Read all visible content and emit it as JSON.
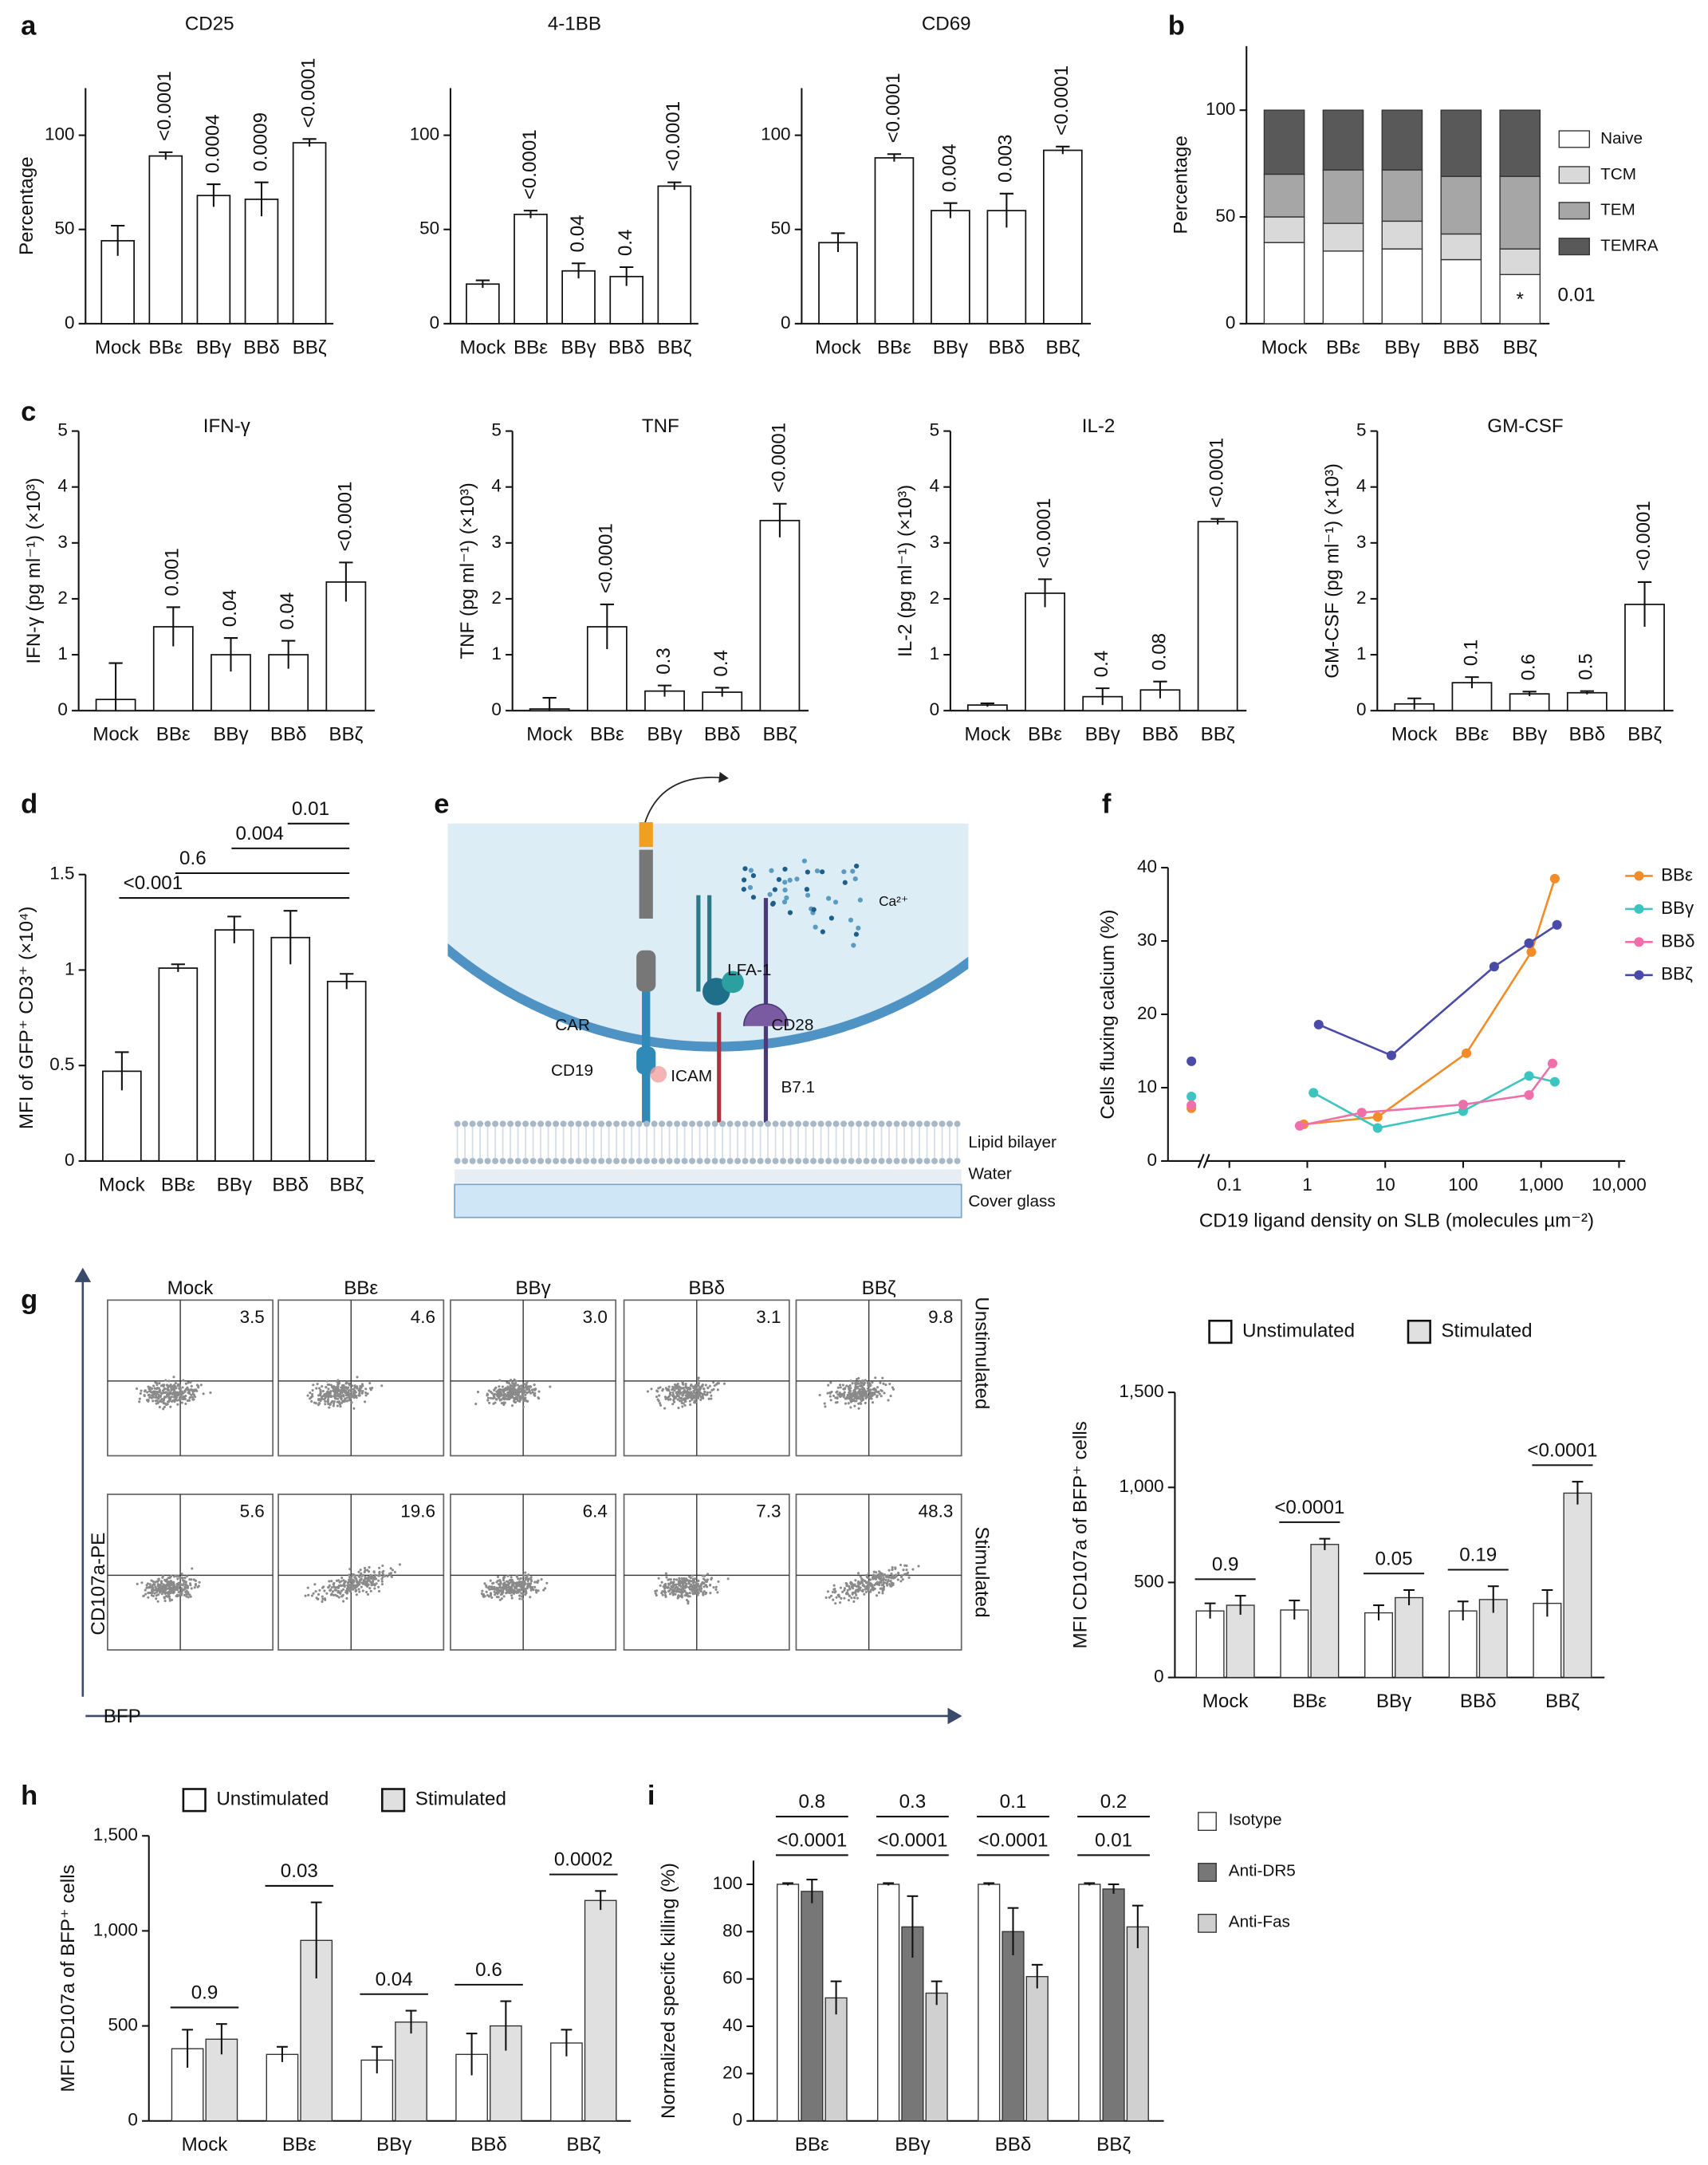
{
  "panel_labels": [
    "a",
    "b",
    "c",
    "d",
    "e",
    "f",
    "g",
    "h",
    "i"
  ],
  "chart_data": [
    {
      "type": "bar",
      "title": "CD25",
      "ylabel": "Percentage",
      "categories": [
        "Mock",
        "BBε",
        "BBγ",
        "BBδ",
        "BBζ"
      ],
      "values": [
        44,
        89,
        68,
        66,
        96
      ],
      "errors": [
        8,
        2,
        6,
        9,
        2
      ],
      "pvalues": [
        null,
        "<0.0001",
        "0.0004",
        "0.0009",
        "<0.0001"
      ],
      "ylim": [
        0,
        125
      ],
      "yticks": [
        0,
        50,
        100
      ]
    },
    {
      "type": "bar",
      "title": "4-1BB",
      "categories": [
        "Mock",
        "BBε",
        "BBγ",
        "BBδ",
        "BBζ"
      ],
      "values": [
        21,
        58,
        28,
        25,
        73
      ],
      "errors": [
        2,
        2,
        4,
        5,
        2
      ],
      "pvalues": [
        null,
        "<0.0001",
        "0.04",
        "0.4",
        "<0.0001"
      ],
      "ylim": [
        0,
        125
      ],
      "yticks": [
        0,
        50,
        100
      ]
    },
    {
      "type": "bar",
      "title": "CD69",
      "categories": [
        "Mock",
        "BBε",
        "BBγ",
        "BBδ",
        "BBζ"
      ],
      "values": [
        43,
        88,
        60,
        60,
        92
      ],
      "errors": [
        5,
        2,
        4,
        9,
        2
      ],
      "pvalues": [
        null,
        "<0.0001",
        "0.004",
        "0.003",
        "<0.0001"
      ],
      "ylim": [
        0,
        125
      ],
      "yticks": [
        0,
        50,
        100
      ]
    },
    {
      "type": "stacked_bar",
      "ylabel": "Percentage",
      "categories": [
        "Mock",
        "BBε",
        "BBγ",
        "BBδ",
        "BBζ"
      ],
      "series": [
        {
          "name": "Naive",
          "color": "#ffffff",
          "values": [
            38,
            34,
            35,
            30,
            23
          ]
        },
        {
          "name": "TCM",
          "color": "#d9d9d9",
          "values": [
            12,
            13,
            13,
            12,
            12
          ]
        },
        {
          "name": "TEM",
          "color": "#a6a6a6",
          "values": [
            20,
            25,
            24,
            27,
            34
          ]
        },
        {
          "name": "TEMRA",
          "color": "#595959",
          "values": [
            30,
            28,
            28,
            31,
            31
          ]
        }
      ],
      "annotations": [
        "*",
        "0.01"
      ],
      "ylim": [
        0,
        130
      ],
      "yticks": [
        0,
        50,
        100
      ]
    },
    {
      "type": "bar",
      "title": "IFN-γ",
      "ylabel": "IFN-γ (pg ml⁻¹) (×10³)",
      "categories": [
        "Mock",
        "BBε",
        "BBγ",
        "BBδ",
        "BBζ"
      ],
      "values": [
        0.2,
        1.5,
        1.0,
        1.0,
        2.3
      ],
      "errors": [
        0.65,
        0.35,
        0.3,
        0.25,
        0.35
      ],
      "pvalues": [
        null,
        "0.001",
        "0.04",
        "0.04",
        "<0.0001"
      ],
      "ylim": [
        0,
        5
      ],
      "yticks": [
        0,
        1,
        2,
        3,
        4,
        5
      ]
    },
    {
      "type": "bar",
      "title": "TNF",
      "ylabel": "TNF (pg ml⁻¹) (×10³)",
      "categories": [
        "Mock",
        "BBε",
        "BBγ",
        "BBδ",
        "BBζ"
      ],
      "values": [
        0.03,
        1.5,
        0.35,
        0.33,
        3.4
      ],
      "errors": [
        0.2,
        0.4,
        0.1,
        0.08,
        0.3
      ],
      "pvalues": [
        null,
        "<0.0001",
        "0.3",
        "0.4",
        "<0.0001"
      ],
      "ylim": [
        0,
        5
      ],
      "yticks": [
        0,
        1,
        2,
        3,
        4,
        5
      ]
    },
    {
      "type": "bar",
      "title": "IL-2",
      "ylabel": "IL-2 (pg ml⁻¹) (×10³)",
      "categories": [
        "Mock",
        "BBε",
        "BBγ",
        "BBδ",
        "BBζ"
      ],
      "values": [
        0.1,
        2.1,
        0.25,
        0.37,
        3.38
      ],
      "errors": [
        0.03,
        0.25,
        0.15,
        0.15,
        0.05
      ],
      "pvalues": [
        null,
        "<0.0001",
        "0.4",
        "0.08",
        "<0.0001"
      ],
      "ylim": [
        0,
        5
      ],
      "yticks": [
        0,
        1,
        2,
        3,
        4,
        5
      ]
    },
    {
      "type": "bar",
      "title": "GM-CSF",
      "ylabel": "GM-CSF (pg ml⁻¹) (×10³)",
      "categories": [
        "Mock",
        "BBε",
        "BBγ",
        "BBδ",
        "BBζ"
      ],
      "values": [
        0.12,
        0.5,
        0.3,
        0.32,
        1.9
      ],
      "errors": [
        0.1,
        0.1,
        0.04,
        0.03,
        0.4
      ],
      "pvalues": [
        null,
        "0.1",
        "0.6",
        "0.5",
        "<0.0001"
      ],
      "ylim": [
        0,
        5
      ],
      "yticks": [
        0,
        1,
        2,
        3,
        4,
        5
      ]
    },
    {
      "type": "bar",
      "ylabel": "MFI of GFP⁺ CD3⁺ (×10⁴)",
      "categories": [
        "Mock",
        "BBε",
        "BBγ",
        "BBδ",
        "BBζ"
      ],
      "values": [
        0.47,
        1.01,
        1.21,
        1.17,
        0.94
      ],
      "errors": [
        0.1,
        0.02,
        0.07,
        0.14,
        0.04
      ],
      "brackets": [
        {
          "from": 0,
          "to": 4,
          "label": "<0.001"
        },
        {
          "from": 1,
          "to": 4,
          "label": "0.6"
        },
        {
          "from": 2,
          "to": 4,
          "label": "0.004"
        },
        {
          "from": 3,
          "to": 4,
          "label": "0.01"
        }
      ],
      "ylim": [
        0,
        1.5
      ],
      "yticks": [
        0,
        0.5,
        1,
        1.5
      ]
    },
    {
      "type": "line",
      "xlabel": "CD19 ligand density on SLB (molecules µm⁻²)",
      "ylabel": "Cells fluxing calcium (%)",
      "xscale": "log",
      "legend": "right",
      "series": [
        {
          "name": "BBε",
          "color": "#f28c28",
          "x": [
            0.9,
            8,
            110,
            750,
            1500
          ],
          "values": [
            5,
            6,
            14.7,
            28.5,
            38.5
          ],
          "baseline": 7.2
        },
        {
          "name": "BBγ",
          "color": "#3cc5c0",
          "x": [
            1.2,
            8,
            100,
            700,
            1500
          ],
          "values": [
            9.3,
            4.5,
            6.8,
            11.6,
            10.8
          ],
          "baseline": 8.8
        },
        {
          "name": "BBδ",
          "color": "#f06eaa",
          "x": [
            0.8,
            5,
            100,
            700,
            1400
          ],
          "values": [
            4.8,
            6.6,
            7.7,
            9,
            13.3
          ],
          "baseline": 7.6
        },
        {
          "name": "BBζ",
          "color": "#4a4aa8",
          "x": [
            1.4,
            12,
            250,
            700,
            1600
          ],
          "values": [
            18.6,
            14.4,
            26.5,
            29.7,
            32.2
          ],
          "baseline": 13.6
        }
      ],
      "xlim": [
        0.06,
        12000
      ],
      "xticks": [
        0.1,
        1,
        10,
        100,
        {
          "value": 1000,
          "label": "1,000"
        },
        {
          "value": 10000,
          "label": "10,000"
        }
      ],
      "ylim": [
        0,
        40
      ],
      "yticks": [
        0,
        10,
        20,
        30,
        40
      ]
    },
    {
      "type": "bar",
      "ylabel": "MFI CD107a of BFP⁺ cells",
      "legend": "top",
      "categories": [
        "Mock",
        "BBε",
        "BBγ",
        "BBδ",
        "BBζ"
      ],
      "series": [
        {
          "name": "Unstimulated",
          "color": "#ffffff",
          "values": [
            350,
            355,
            340,
            350,
            390
          ],
          "errors": [
            40,
            50,
            40,
            50,
            70
          ]
        },
        {
          "name": "Stimulated",
          "color": "#e0e0e0",
          "values": [
            380,
            700,
            420,
            410,
            970
          ],
          "errors": [
            50,
            30,
            40,
            70,
            60
          ]
        }
      ],
      "brackets": [
        [
          "0.9",
          "<0.0001",
          "0.05",
          "0.19",
          "<0.0001"
        ]
      ],
      "ylim": [
        0,
        1500
      ],
      "yticks": [
        0,
        500,
        {
          "value": 1000,
          "label": "1,000"
        },
        {
          "value": 1500,
          "label": "1,500"
        }
      ]
    },
    {
      "type": "bar",
      "ylabel": "MFI CD107a of BFP⁺ cells",
      "legend": "top",
      "categories": [
        "Mock",
        "BBε",
        "BBγ",
        "BBδ",
        "BBζ"
      ],
      "series": [
        {
          "name": "Unstimulated",
          "color": "#ffffff",
          "values": [
            380,
            350,
            320,
            350,
            410
          ],
          "errors": [
            100,
            40,
            70,
            110,
            70
          ]
        },
        {
          "name": "Stimulated",
          "color": "#e0e0e0",
          "values": [
            430,
            950,
            520,
            500,
            1160
          ],
          "errors": [
            80,
            200,
            60,
            130,
            50
          ]
        }
      ],
      "brackets": [
        [
          "0.9",
          "0.03",
          "0.04",
          "0.6",
          "0.0002"
        ]
      ],
      "ylim": [
        0,
        1500
      ],
      "yticks": [
        0,
        500,
        {
          "value": 1000,
          "label": "1,000"
        },
        {
          "value": 1500,
          "label": "1,500"
        }
      ]
    },
    {
      "type": "bar",
      "ylabel": "Normalized specific killing (%)",
      "legend": "right",
      "categories": [
        "BBε",
        "BBγ",
        "BBδ",
        "BBζ"
      ],
      "series": [
        {
          "name": "Isotype",
          "color": "#ffffff",
          "values": [
            100,
            100,
            100,
            100
          ],
          "errors": [
            0.5,
            0.5,
            0.5,
            0.5
          ]
        },
        {
          "name": "Anti-DR5",
          "color": "#777777",
          "values": [
            97,
            82,
            80,
            98
          ],
          "errors": [
            5,
            13,
            10,
            2
          ]
        },
        {
          "name": "Anti-Fas",
          "color": "#d0d0d0",
          "values": [
            52,
            54,
            61,
            82
          ],
          "errors": [
            7,
            5,
            5,
            9
          ]
        }
      ],
      "brackets": [
        [
          "0.8",
          "0.3",
          "0.1",
          "0.2"
        ],
        [
          "<0.0001",
          "<0.0001",
          "<0.0001",
          "0.01"
        ]
      ],
      "ylim": [
        0,
        110
      ],
      "yticks": [
        0,
        20,
        40,
        60,
        80,
        100
      ]
    }
  ],
  "diagram": {
    "ion": "Ca²⁺",
    "car": "CAR",
    "lfa1": "LFA-1",
    "cd28": "CD28",
    "cd19": "CD19",
    "icam": "ICAM",
    "b71": "B7.1",
    "bilayer": "Lipid bilayer",
    "water": "Water",
    "glass": "Cover glass"
  },
  "flow": {
    "columns": [
      "Mock",
      "BBε",
      "BBγ",
      "BBδ",
      "BBζ"
    ],
    "rows": [
      "Unstimulated",
      "Stimulated"
    ],
    "percentages": [
      [
        "3.5",
        "4.6",
        "3.0",
        "3.1",
        "9.8"
      ],
      [
        "5.6",
        "19.6",
        "6.4",
        "7.3",
        "48.3"
      ]
    ],
    "ylabel": "CD107a-PE",
    "xlabel": "BFP"
  }
}
